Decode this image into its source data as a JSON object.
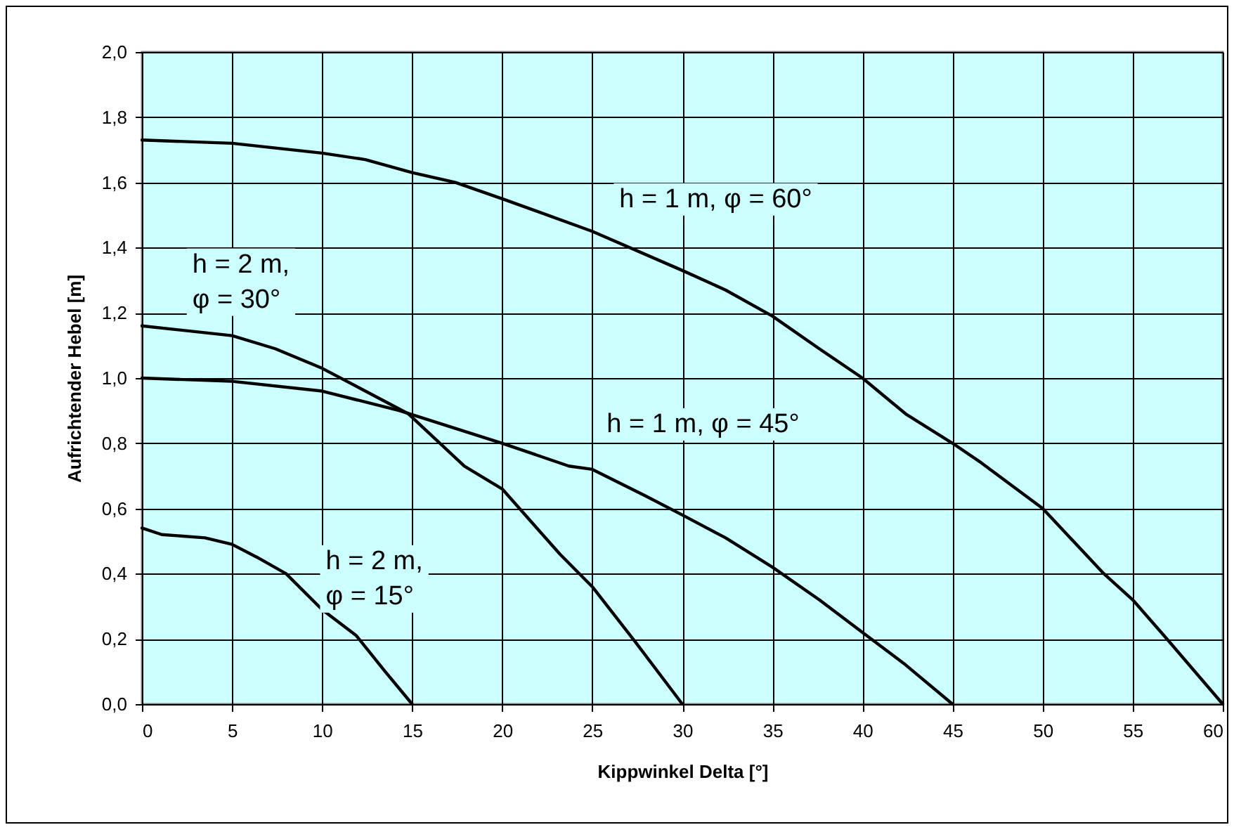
{
  "chart_data": {
    "type": "line",
    "xlabel": "Kippwinkel Delta [°]",
    "ylabel": "Aufrichtender Hebel [m]",
    "xlim": [
      0,
      60
    ],
    "xticks": [
      0,
      5,
      10,
      15,
      20,
      25,
      30,
      35,
      40,
      45,
      50,
      55,
      60
    ],
    "ylim": [
      0,
      2
    ],
    "yticks": [
      {
        "value": 0,
        "label": "0,0"
      },
      {
        "value": 0.2,
        "label": "0,2"
      },
      {
        "value": 0.4,
        "label": "0,4"
      },
      {
        "value": 0.6,
        "label": "0,6"
      },
      {
        "value": 0.8,
        "label": "0,8"
      },
      {
        "value": 1,
        "label": "1,0"
      },
      {
        "value": 1.2,
        "label": "1,2"
      },
      {
        "value": 1.4,
        "label": "1,4"
      },
      {
        "value": 1.6,
        "label": "1,6"
      },
      {
        "value": 1.8,
        "label": "1,8"
      },
      {
        "value": 2,
        "label": "2,0"
      }
    ],
    "grid": true,
    "legend": false,
    "marker": "none",
    "line_style": "solid",
    "series": [
      {
        "name": "h = 1 m, φ = 60°",
        "color": "#000000",
        "x": [
          0,
          5,
          10,
          12.4,
          15,
          17.4,
          20,
          25,
          30,
          32.4,
          35,
          37.6,
          40,
          42.4,
          45,
          46.6,
          50,
          53.4,
          55,
          56.9,
          60
        ],
        "values": [
          1.73,
          1.72,
          1.69,
          1.67,
          1.63,
          1.6,
          1.55,
          1.45,
          1.33,
          1.27,
          1.19,
          1.09,
          1.0,
          0.89,
          0.8,
          0.74,
          0.6,
          0.4,
          0.32,
          0.2,
          0
        ]
      },
      {
        "name": "h = 1 m, φ = 45°",
        "color": "#000000",
        "x": [
          0,
          5,
          10,
          14.3,
          20,
          23.7,
          25,
          27.9,
          30,
          32.4,
          35,
          37.6,
          40,
          42.4,
          45
        ],
        "values": [
          1.0,
          0.99,
          0.96,
          0.9,
          0.8,
          0.73,
          0.72,
          0.64,
          0.58,
          0.51,
          0.42,
          0.32,
          0.22,
          0.12,
          0
        ]
      },
      {
        "name": "h = 2 m,\nφ = 30°",
        "color": "#000000",
        "x": [
          0,
          5,
          7.4,
          10,
          12.4,
          14.8,
          17.9,
          20,
          23.2,
          25,
          27.4,
          30
        ],
        "values": [
          1.16,
          1.13,
          1.09,
          1.03,
          0.96,
          0.89,
          0.73,
          0.66,
          0.46,
          0.36,
          0.19,
          0
        ]
      },
      {
        "name": "h = 2 m,\nφ = 15°",
        "color": "#000000",
        "x": [
          0,
          1.1,
          3.5,
          5,
          6.4,
          8,
          10,
          11.9,
          13.5,
          15
        ],
        "values": [
          0.54,
          0.52,
          0.51,
          0.49,
          0.45,
          0.4,
          0.29,
          0.21,
          0.1,
          0
        ]
      }
    ]
  }
}
